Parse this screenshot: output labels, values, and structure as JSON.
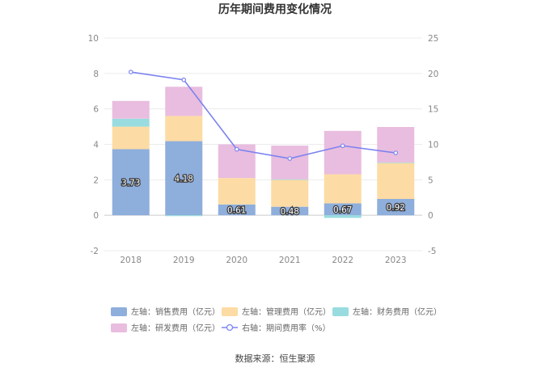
{
  "chart_data": {
    "type": "bar",
    "title": "历年期间费用变化情况",
    "categories": [
      "2018",
      "2019",
      "2020",
      "2021",
      "2022",
      "2023"
    ],
    "left_axis": {
      "min": -2,
      "max": 10,
      "ticks": [
        -2,
        0,
        2,
        4,
        6,
        8,
        10
      ]
    },
    "right_axis": {
      "min": -5,
      "max": 25,
      "ticks": [
        -5,
        0,
        5,
        10,
        15,
        20,
        25
      ]
    },
    "series": [
      {
        "name": "左轴：销售费用（亿元）",
        "type": "bar",
        "axis": "left",
        "color": "#8eaedc",
        "values": [
          3.73,
          4.18,
          0.61,
          0.48,
          0.67,
          0.92
        ],
        "labels": [
          "3.73",
          "4.18",
          "0.61",
          "0.48",
          "0.67",
          "0.92"
        ]
      },
      {
        "name": "左轴：管理费用（亿元）",
        "type": "bar",
        "axis": "left",
        "color": "#fddba4",
        "values": [
          1.27,
          1.42,
          1.49,
          1.53,
          1.64,
          2.03
        ]
      },
      {
        "name": "左轴：财务费用（亿元）",
        "type": "bar",
        "axis": "left",
        "color": "#98dcdf",
        "values": [
          0.45,
          -0.05,
          0.0,
          0.02,
          -0.15,
          0.03
        ]
      },
      {
        "name": "左轴：研发费用（亿元）",
        "type": "bar",
        "axis": "left",
        "color": "#e9bddf",
        "values": [
          1.0,
          1.65,
          1.9,
          1.9,
          2.45,
          2.0
        ]
      },
      {
        "name": "右轴：期间费用率（%）",
        "type": "line",
        "axis": "right",
        "color": "#7b83f0",
        "values": [
          20.2,
          19.1,
          9.3,
          8.0,
          9.8,
          8.8
        ]
      }
    ],
    "legend_position": "bottom",
    "grid": true
  },
  "source": "数据来源：恒生聚源"
}
